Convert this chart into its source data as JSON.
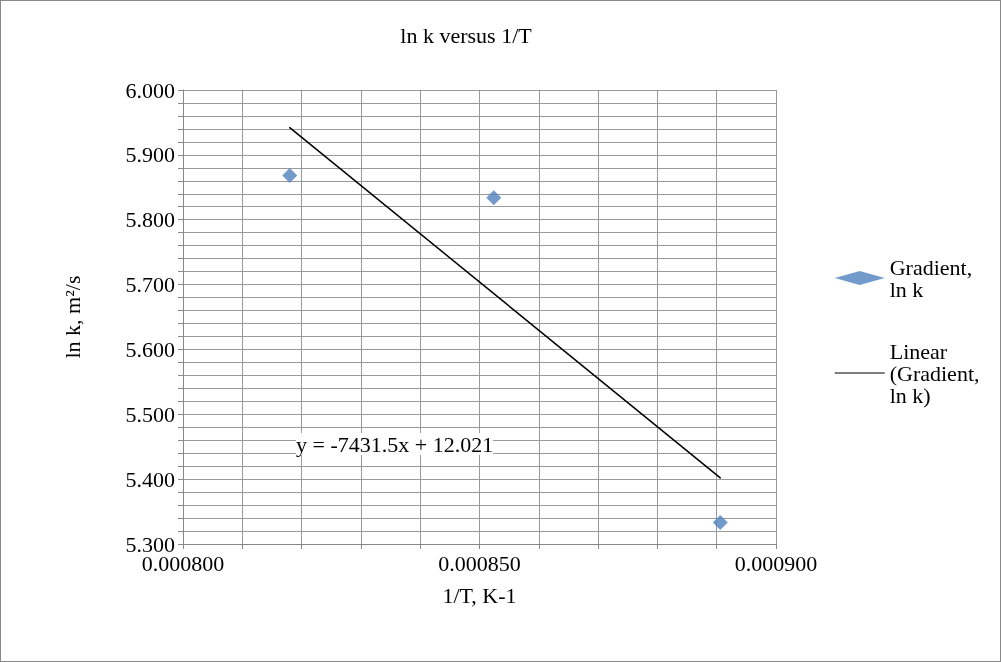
{
  "chart_data": {
    "type": "scatter",
    "title": "ln k versus 1/T",
    "xlabel": "1/T, K-1",
    "ylabel": "ln k, m²/s",
    "x": [
      0.000818,
      0.0008524,
      0.0008906
    ],
    "series": [
      {
        "name": "Gradient, ln k",
        "color": "#4f81bd",
        "marker": "diamond",
        "values": [
          5.868,
          5.834,
          5.333
        ]
      },
      {
        "name": "Linear (Gradient, ln k)",
        "type": "line",
        "color": "#000000",
        "marker": "none",
        "line_style": "solid",
        "x": [
          0.000818,
          0.0008906
        ],
        "values": [
          5.942,
          5.402
        ]
      }
    ],
    "annotations": [
      "y = -7431.5x + 12.021"
    ],
    "xlim": [
      0.0008,
      0.0009
    ],
    "xticks": [
      {
        "value": 0.0008,
        "label": "0.000800"
      },
      {
        "value": 0.00081,
        "label": null
      },
      {
        "value": 0.00082,
        "label": null
      },
      {
        "value": 0.00083,
        "label": null
      },
      {
        "value": 0.00084,
        "label": null
      },
      {
        "value": 0.00085,
        "label": "0.000850"
      },
      {
        "value": 0.00086,
        "label": null
      },
      {
        "value": 0.00087,
        "label": null
      },
      {
        "value": 0.00088,
        "label": null
      },
      {
        "value": 0.00089,
        "label": null
      },
      {
        "value": 0.0009,
        "label": "0.000900"
      }
    ],
    "ylim": [
      5.3,
      6.0
    ],
    "yticks": [
      {
        "value": 5.3,
        "label": "5.300"
      },
      {
        "value": 5.32,
        "label": null
      },
      {
        "value": 5.34,
        "label": null
      },
      {
        "value": 5.36,
        "label": null
      },
      {
        "value": 5.38,
        "label": null
      },
      {
        "value": 5.4,
        "label": "5.400"
      },
      {
        "value": 5.42,
        "label": null
      },
      {
        "value": 5.44,
        "label": null
      },
      {
        "value": 5.46,
        "label": null
      },
      {
        "value": 5.48,
        "label": null
      },
      {
        "value": 5.5,
        "label": "5.500"
      },
      {
        "value": 5.52,
        "label": null
      },
      {
        "value": 5.54,
        "label": null
      },
      {
        "value": 5.56,
        "label": null
      },
      {
        "value": 5.58,
        "label": null
      },
      {
        "value": 5.6,
        "label": "5.600"
      },
      {
        "value": 5.62,
        "label": null
      },
      {
        "value": 5.64,
        "label": null
      },
      {
        "value": 5.66,
        "label": null
      },
      {
        "value": 5.68,
        "label": null
      },
      {
        "value": 5.7,
        "label": "5.700"
      },
      {
        "value": 5.72,
        "label": null
      },
      {
        "value": 5.74,
        "label": null
      },
      {
        "value": 5.76,
        "label": null
      },
      {
        "value": 5.78,
        "label": null
      },
      {
        "value": 5.8,
        "label": "5.800"
      },
      {
        "value": 5.82,
        "label": null
      },
      {
        "value": 5.84,
        "label": null
      },
      {
        "value": 5.86,
        "label": null
      },
      {
        "value": 5.88,
        "label": null
      },
      {
        "value": 5.9,
        "label": "5.900"
      },
      {
        "value": 5.92,
        "label": null
      },
      {
        "value": 5.94,
        "label": null
      },
      {
        "value": 5.96,
        "label": null
      },
      {
        "value": 5.98,
        "label": null
      },
      {
        "value": 6.0,
        "label": "6.000"
      }
    ],
    "grid": true,
    "legend": "right"
  }
}
